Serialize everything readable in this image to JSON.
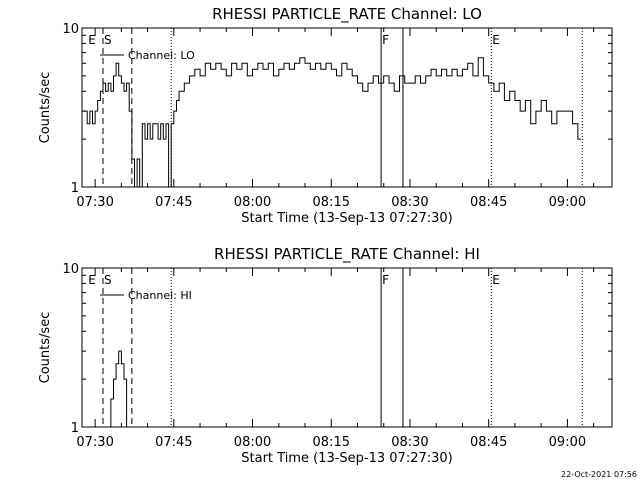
{
  "footer_timestamp": "22-Oct-2021 07:56",
  "chart_data": [
    {
      "type": "line",
      "title": "RHESSI PARTICLE_RATE Channel: LO",
      "xlabel": "Start Time (13-Sep-13 07:27:30)",
      "ylabel": "Counts/sec",
      "yscale": "log",
      "ylim": [
        1,
        10
      ],
      "y_ticks": [
        {
          "value": 1,
          "label": "1"
        },
        {
          "value": 10,
          "label": "10"
        }
      ],
      "xlim": [
        "07:27:30",
        "09:08:30"
      ],
      "x_ticks": [
        "07:30",
        "07:45",
        "08:00",
        "08:15",
        "08:30",
        "08:45",
        "09:00"
      ],
      "legend": {
        "label": "Channel: LO",
        "position": "top-left"
      },
      "event_markers": [
        {
          "time": "07:28:30",
          "label": "E",
          "style": "none"
        },
        {
          "time": "07:31:30",
          "label": "S",
          "style": "dashed"
        },
        {
          "time": "07:37:00",
          "label": "",
          "style": "dashed"
        },
        {
          "time": "07:44:30",
          "label": "",
          "style": "dotted"
        },
        {
          "time": "08:24:30",
          "label": "F",
          "style": "solid"
        },
        {
          "time": "08:28:40",
          "label": "",
          "style": "solid"
        },
        {
          "time": "08:45:30",
          "label": "E",
          "style": "dotted"
        },
        {
          "time": "09:02:50",
          "label": "",
          "style": "dotted"
        }
      ],
      "series": [
        {
          "x": [
            "07:27:30",
            "07:28:30",
            "07:29:00",
            "07:29:30",
            "07:30:00",
            "07:30:30",
            "07:31:00",
            "07:31:30",
            "07:32:00",
            "07:32:30",
            "07:33:00",
            "07:33:30",
            "07:34:00",
            "07:34:30",
            "07:35:00",
            "07:35:30",
            "07:36:00",
            "07:36:30",
            "07:37:00",
            "07:37:30",
            "07:38:00",
            "07:38:30",
            "07:39:00",
            "07:39:30",
            "07:40:00",
            "07:40:30",
            "07:41:00",
            "07:41:30",
            "07:42:00",
            "07:42:30",
            "07:43:00",
            "07:43:30",
            "07:44:00",
            "07:44:30",
            "07:45:00",
            "07:45:30",
            "07:46:00",
            "07:47:00",
            "07:48:00",
            "07:49:00",
            "07:50:00",
            "07:51:00",
            "07:52:00",
            "07:53:00",
            "07:54:00",
            "07:55:00",
            "07:56:00",
            "07:57:00",
            "07:58:00",
            "07:59:00",
            "08:00:00",
            "08:01:00",
            "08:02:00",
            "08:03:00",
            "08:04:00",
            "08:05:00",
            "08:06:00",
            "08:07:00",
            "08:08:00",
            "08:09:00",
            "08:10:00",
            "08:11:00",
            "08:12:00",
            "08:13:00",
            "08:14:00",
            "08:15:00",
            "08:16:00",
            "08:17:00",
            "08:18:00",
            "08:19:00",
            "08:20:00",
            "08:21:00",
            "08:22:00",
            "08:23:00",
            "08:24:00",
            "08:25:00",
            "08:26:00",
            "08:27:00",
            "08:28:00",
            "08:29:00",
            "08:30:00",
            "08:31:00",
            "08:32:00",
            "08:33:00",
            "08:34:00",
            "08:35:00",
            "08:36:00",
            "08:37:00",
            "08:38:00",
            "08:39:00",
            "08:40:00",
            "08:41:00",
            "08:42:00",
            "08:43:00",
            "08:44:00",
            "08:45:00",
            "08:46:00",
            "08:47:00",
            "08:48:00",
            "08:49:00",
            "08:50:00",
            "08:51:00",
            "08:52:00",
            "08:53:00",
            "08:54:00",
            "08:55:00",
            "08:56:00",
            "08:57:00",
            "08:58:00",
            "08:59:00",
            "09:00:00",
            "09:01:00",
            "09:02:00"
          ],
          "y": [
            3,
            2.5,
            3,
            2.5,
            3,
            3.5,
            4,
            4.5,
            4,
            4.5,
            4,
            5,
            6,
            5,
            4.5,
            4,
            4.5,
            3,
            1.5,
            1,
            1.5,
            1,
            2.5,
            2,
            2.5,
            2,
            2.5,
            2.5,
            2,
            2.5,
            2,
            2.5,
            1,
            2.5,
            3,
            3.5,
            4,
            4.5,
            5,
            5.5,
            5,
            6,
            5.5,
            6,
            5.5,
            5,
            6,
            5.5,
            6,
            5,
            5.5,
            6,
            5.5,
            6,
            5,
            5.5,
            6,
            5.5,
            6,
            6.5,
            6,
            5.5,
            6,
            5.5,
            6,
            5.5,
            5,
            6,
            5.5,
            5,
            4.5,
            4,
            4.5,
            5,
            4.5,
            5,
            4.5,
            4,
            5,
            4.5,
            4.5,
            5,
            4.5,
            5,
            5.5,
            5,
            5.5,
            5,
            5.5,
            5,
            5.5,
            6,
            5,
            6.5,
            5,
            4.5,
            4,
            4.5,
            3.5,
            4,
            3.5,
            3,
            3.5,
            2.5,
            3,
            3.5,
            3,
            2.5,
            3,
            3,
            3,
            2.5,
            2
          ]
        }
      ]
    },
    {
      "type": "line",
      "title": "RHESSI PARTICLE_RATE Channel: HI",
      "xlabel": "Start Time (13-Sep-13 07:27:30)",
      "ylabel": "Counts/sec",
      "yscale": "log",
      "ylim": [
        1,
        10
      ],
      "y_ticks": [
        {
          "value": 1,
          "label": "1"
        },
        {
          "value": 10,
          "label": "10"
        }
      ],
      "xlim": [
        "07:27:30",
        "09:08:30"
      ],
      "x_ticks": [
        "07:30",
        "07:45",
        "08:00",
        "08:15",
        "08:30",
        "08:45",
        "09:00"
      ],
      "legend": {
        "label": "Channel: HI",
        "position": "top-left"
      },
      "event_markers": [
        {
          "time": "07:28:30",
          "label": "E",
          "style": "none"
        },
        {
          "time": "07:31:30",
          "label": "S",
          "style": "dashed"
        },
        {
          "time": "07:37:00",
          "label": "",
          "style": "dashed"
        },
        {
          "time": "07:44:30",
          "label": "",
          "style": "dotted"
        },
        {
          "time": "08:24:30",
          "label": "F",
          "style": "solid"
        },
        {
          "time": "08:28:40",
          "label": "",
          "style": "solid"
        },
        {
          "time": "08:45:30",
          "label": "E",
          "style": "dotted"
        },
        {
          "time": "09:02:50",
          "label": "",
          "style": "dotted"
        }
      ],
      "series": [
        {
          "x": [
            "07:32:30",
            "07:33:00",
            "07:33:30",
            "07:34:00",
            "07:34:30",
            "07:35:00",
            "07:35:30",
            "07:36:00"
          ],
          "y": [
            1,
            1.5,
            2,
            2.5,
            3,
            2.5,
            2,
            1
          ]
        }
      ]
    }
  ]
}
